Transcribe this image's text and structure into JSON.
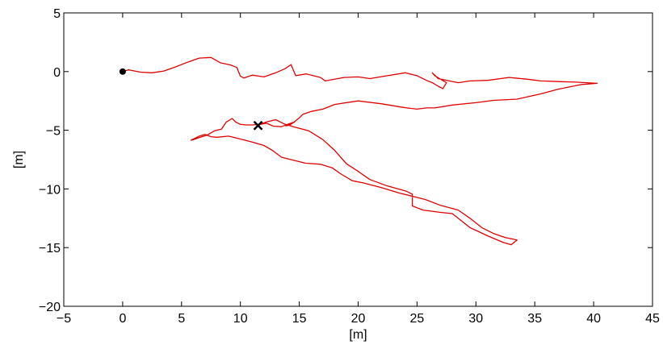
{
  "chart_data": {
    "type": "line",
    "xlabel": "[m]",
    "ylabel": "[m]",
    "xlim": [
      -5,
      45
    ],
    "ylim": [
      -20,
      5
    ],
    "xticks": [
      -5,
      0,
      5,
      10,
      15,
      20,
      25,
      30,
      35,
      40,
      45
    ],
    "yticks": [
      5,
      0,
      -5,
      -10,
      -15,
      -20
    ],
    "xtick_labels": [
      "−5",
      "0",
      "5",
      "10",
      "15",
      "20",
      "25",
      "30",
      "35",
      "40",
      "45"
    ],
    "ytick_labels": [
      "5",
      "0",
      "−5",
      "−10",
      "−15",
      "−20"
    ],
    "grid": false,
    "series": [
      {
        "color": "#e00000",
        "x": [
          0,
          0.5,
          1.5,
          2.5,
          3.5,
          4.5,
          5.5,
          6.5,
          7.5,
          8.3,
          9.2,
          9.7,
          10.0,
          10.3,
          11.0,
          12.0,
          13.0,
          13.8,
          14.3,
          14.7,
          15.6,
          16.8,
          17.2,
          18.8,
          20.0,
          21.0,
          22.5,
          24.0,
          25.0,
          25.8,
          26.3,
          26.8,
          27.2,
          27.5,
          26.5,
          26.3,
          26.8,
          28.5,
          29.5,
          31.0,
          32.8,
          34.4,
          35.5,
          37.0,
          38.5,
          40.3,
          39.0,
          37.0,
          35.5,
          33.5,
          31.5,
          30.0,
          28.0,
          26.5,
          25.8,
          25.0,
          23.8,
          22.0,
          20.0,
          18.0,
          17.0,
          16.0,
          15.3,
          15.0,
          14.5,
          14.2,
          14.0,
          13.8,
          14.3,
          14.6,
          14.0,
          13.5,
          12.8,
          12.2,
          11.7,
          11.0,
          10.5,
          10.0,
          9.6,
          9.3,
          8.8,
          8.4,
          7.8,
          7.2,
          6.6,
          6.0,
          5.8,
          6.5,
          7.0,
          7.5,
          8.0,
          9.0,
          10.0,
          11.0,
          12.0,
          12.7,
          13.5,
          14.5,
          15.5,
          16.8,
          17.8,
          18.5,
          19.5,
          20.5,
          22.0,
          23.5,
          24.5,
          25.7,
          27.0,
          28.5,
          29.5,
          30.5,
          31.5,
          32.5,
          33.5,
          33.0,
          32.3,
          31.0,
          29.5,
          28.0,
          27.0,
          25.5,
          24.6,
          24.6,
          24.1,
          22.5,
          21.0,
          20.0,
          19.0,
          18.0,
          17.0,
          15.8,
          14.5,
          13.7,
          13.0,
          12.2,
          11.5
        ],
        "y": [
          0,
          0.15,
          -0.05,
          -0.1,
          0.05,
          0.4,
          0.8,
          1.15,
          1.2,
          0.75,
          0.55,
          0.35,
          -0.4,
          -0.55,
          -0.3,
          -0.45,
          -0.1,
          0.25,
          0.6,
          -0.35,
          -0.2,
          -0.5,
          -0.8,
          -0.5,
          -0.45,
          -0.6,
          -0.35,
          -0.1,
          -0.35,
          -0.75,
          -0.95,
          -1.25,
          -1.45,
          -0.95,
          -0.35,
          -0.1,
          -0.6,
          -0.95,
          -0.8,
          -0.75,
          -0.5,
          -0.65,
          -0.8,
          -0.85,
          -0.9,
          -1.0,
          -1.1,
          -1.5,
          -1.9,
          -2.35,
          -2.45,
          -2.65,
          -2.85,
          -3.1,
          -3.1,
          -3.2,
          -3.05,
          -2.75,
          -2.5,
          -2.8,
          -3.2,
          -3.4,
          -3.65,
          -3.95,
          -4.35,
          -4.55,
          -4.6,
          -4.6,
          -4.45,
          -4.3,
          -4.5,
          -4.7,
          -4.65,
          -4.4,
          -4.5,
          -4.55,
          -4.55,
          -4.5,
          -4.3,
          -4.0,
          -4.3,
          -4.9,
          -5.05,
          -5.4,
          -5.6,
          -5.8,
          -5.85,
          -5.5,
          -5.35,
          -5.55,
          -5.6,
          -5.5,
          -5.75,
          -6.0,
          -6.3,
          -6.7,
          -7.3,
          -7.55,
          -7.8,
          -7.9,
          -8.2,
          -8.7,
          -9.3,
          -9.5,
          -9.9,
          -10.35,
          -10.6,
          -10.9,
          -11.4,
          -11.8,
          -12.5,
          -13.3,
          -13.8,
          -14.15,
          -14.35,
          -14.75,
          -14.55,
          -14.0,
          -13.3,
          -12.1,
          -12.0,
          -11.8,
          -11.45,
          -10.45,
          -10.2,
          -9.75,
          -9.2,
          -8.5,
          -7.85,
          -6.7,
          -5.8,
          -5.05,
          -4.7,
          -4.45,
          -4.1,
          -4.3,
          -4.55
        ]
      }
    ],
    "markers": [
      {
        "shape": "dot",
        "x": 0,
        "y": 0,
        "color": "#000000"
      },
      {
        "shape": "cross",
        "x": 11.5,
        "y": -4.6,
        "color": "#000000"
      }
    ]
  }
}
